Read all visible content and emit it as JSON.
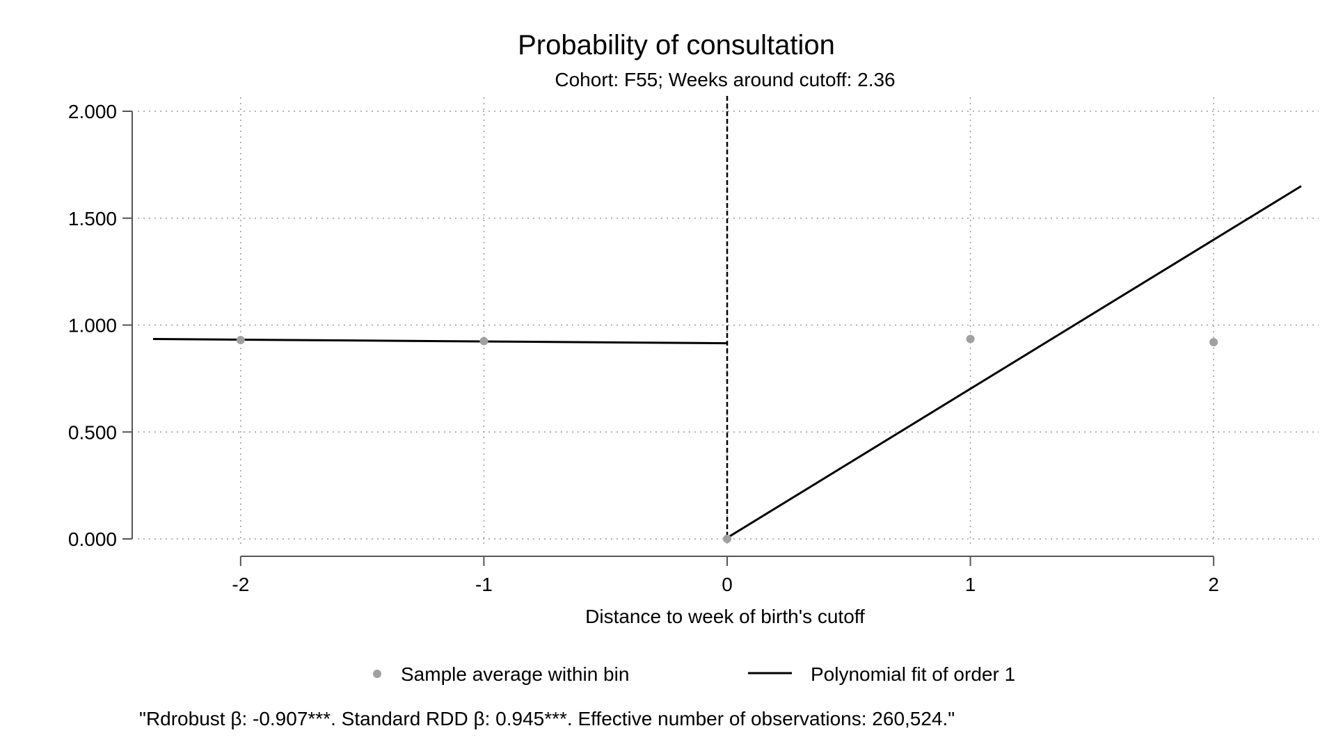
{
  "chart_data": {
    "type": "scatter",
    "title": "Probability of consultation",
    "subtitle": "Cohort: F55; Weeks around cutoff: 2.36",
    "xlabel": "Distance to week of birth's cutoff",
    "ylabel": "",
    "xlim": [
      -2.36,
      2.36
    ],
    "ylim": [
      0,
      2
    ],
    "xticks": [
      -2,
      -1,
      0,
      1,
      2
    ],
    "xtick_labels": [
      "-2",
      "-1",
      "0",
      "1",
      "2"
    ],
    "yticks": [
      0,
      0.5,
      1,
      1.5,
      2
    ],
    "ytick_labels": [
      "0.000",
      "0.500",
      "1.000",
      "1.500",
      "2.000"
    ],
    "grid": true,
    "cutoff_x": 0,
    "series": [
      {
        "name": "Sample average within bin",
        "kind": "points",
        "color": "#a0a0a0",
        "points": [
          {
            "x": -2,
            "y": 0.93
          },
          {
            "x": -1,
            "y": 0.925
          },
          {
            "x": 0,
            "y": 0.0
          },
          {
            "x": 1,
            "y": 0.935
          },
          {
            "x": 2,
            "y": 0.92
          }
        ]
      },
      {
        "name": "Polynomial fit of order 1",
        "kind": "line",
        "color": "#000000",
        "segments": [
          [
            {
              "x": -2.36,
              "y": 0.935
            },
            {
              "x": 0,
              "y": 0.915
            }
          ],
          [
            {
              "x": 0,
              "y": 0.005
            },
            {
              "x": 2.36,
              "y": 1.65
            }
          ]
        ]
      }
    ],
    "legend_placement": "bottom",
    "note": "\"Rdrobust β: -0.907***. Standard RDD β: 0.945***. Effective number of observations: 260,524.\""
  }
}
